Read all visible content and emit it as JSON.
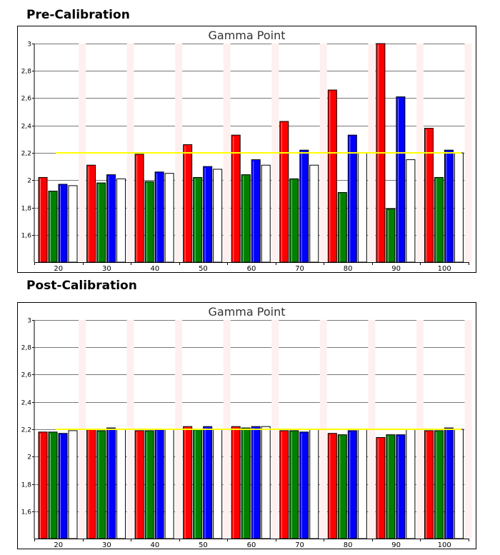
{
  "sections": [
    {
      "heading": "Pre-Calibration"
    },
    {
      "heading": "Post-Calibration"
    }
  ],
  "colors": {
    "red": "#ff0000",
    "green": "#008000",
    "blue": "#0000ff",
    "white": "#ffffff",
    "target": "#ffff00",
    "grid": "#777777",
    "shade": "#fff0f0"
  },
  "chart_data": [
    {
      "type": "bar",
      "title": "Gamma Point",
      "categories": [
        "20",
        "30",
        "40",
        "50",
        "60",
        "70",
        "80",
        "90",
        "100"
      ],
      "series": [
        {
          "color": "red",
          "values": [
            2.02,
            2.11,
            2.19,
            2.26,
            2.33,
            2.43,
            2.66,
            3.0,
            2.38
          ]
        },
        {
          "color": "green",
          "values": [
            1.92,
            1.98,
            1.99,
            2.02,
            2.04,
            2.01,
            1.91,
            1.79,
            2.02
          ]
        },
        {
          "color": "blue",
          "values": [
            1.97,
            2.04,
            2.06,
            2.1,
            2.15,
            2.22,
            2.33,
            2.61,
            2.22
          ]
        },
        {
          "color": "white",
          "values": [
            1.96,
            2.01,
            2.05,
            2.08,
            2.11,
            2.11,
            2.2,
            2.15,
            2.2
          ]
        }
      ],
      "reference_line": {
        "value": 2.2,
        "color": "yellow"
      },
      "ylim": [
        1.4,
        3.0
      ],
      "yticks": [
        "1,6",
        "1,8",
        "2",
        "2,2",
        "2,4",
        "2,6",
        "2,8",
        "3"
      ],
      "ytick_values": [
        1.6,
        1.8,
        2.0,
        2.2,
        2.4,
        2.6,
        2.8,
        3.0
      ],
      "grid": "horizontal"
    },
    {
      "type": "bar",
      "title": "Gamma Point",
      "categories": [
        "20",
        "30",
        "40",
        "50",
        "60",
        "70",
        "80",
        "90",
        "100"
      ],
      "series": [
        {
          "color": "red",
          "values": [
            2.18,
            2.2,
            2.19,
            2.22,
            2.22,
            2.19,
            2.17,
            2.14,
            2.19
          ]
        },
        {
          "color": "green",
          "values": [
            2.18,
            2.19,
            2.19,
            2.2,
            2.21,
            2.19,
            2.16,
            2.16,
            2.19
          ]
        },
        {
          "color": "blue",
          "values": [
            2.17,
            2.21,
            2.2,
            2.22,
            2.22,
            2.18,
            2.19,
            2.16,
            2.21
          ]
        },
        {
          "color": "white",
          "values": [
            2.19,
            2.2,
            2.2,
            2.2,
            2.22,
            2.2,
            2.2,
            2.2,
            2.2
          ]
        }
      ],
      "reference_line": {
        "value": 2.2,
        "color": "yellow"
      },
      "ylim": [
        1.4,
        3.0
      ],
      "yticks": [
        "1,6",
        "1,8",
        "2",
        "2,2",
        "2,4",
        "2,6",
        "2,8",
        "3"
      ],
      "ytick_values": [
        1.6,
        1.8,
        2.0,
        2.2,
        2.4,
        2.6,
        2.8,
        3.0
      ],
      "grid": "horizontal"
    }
  ]
}
